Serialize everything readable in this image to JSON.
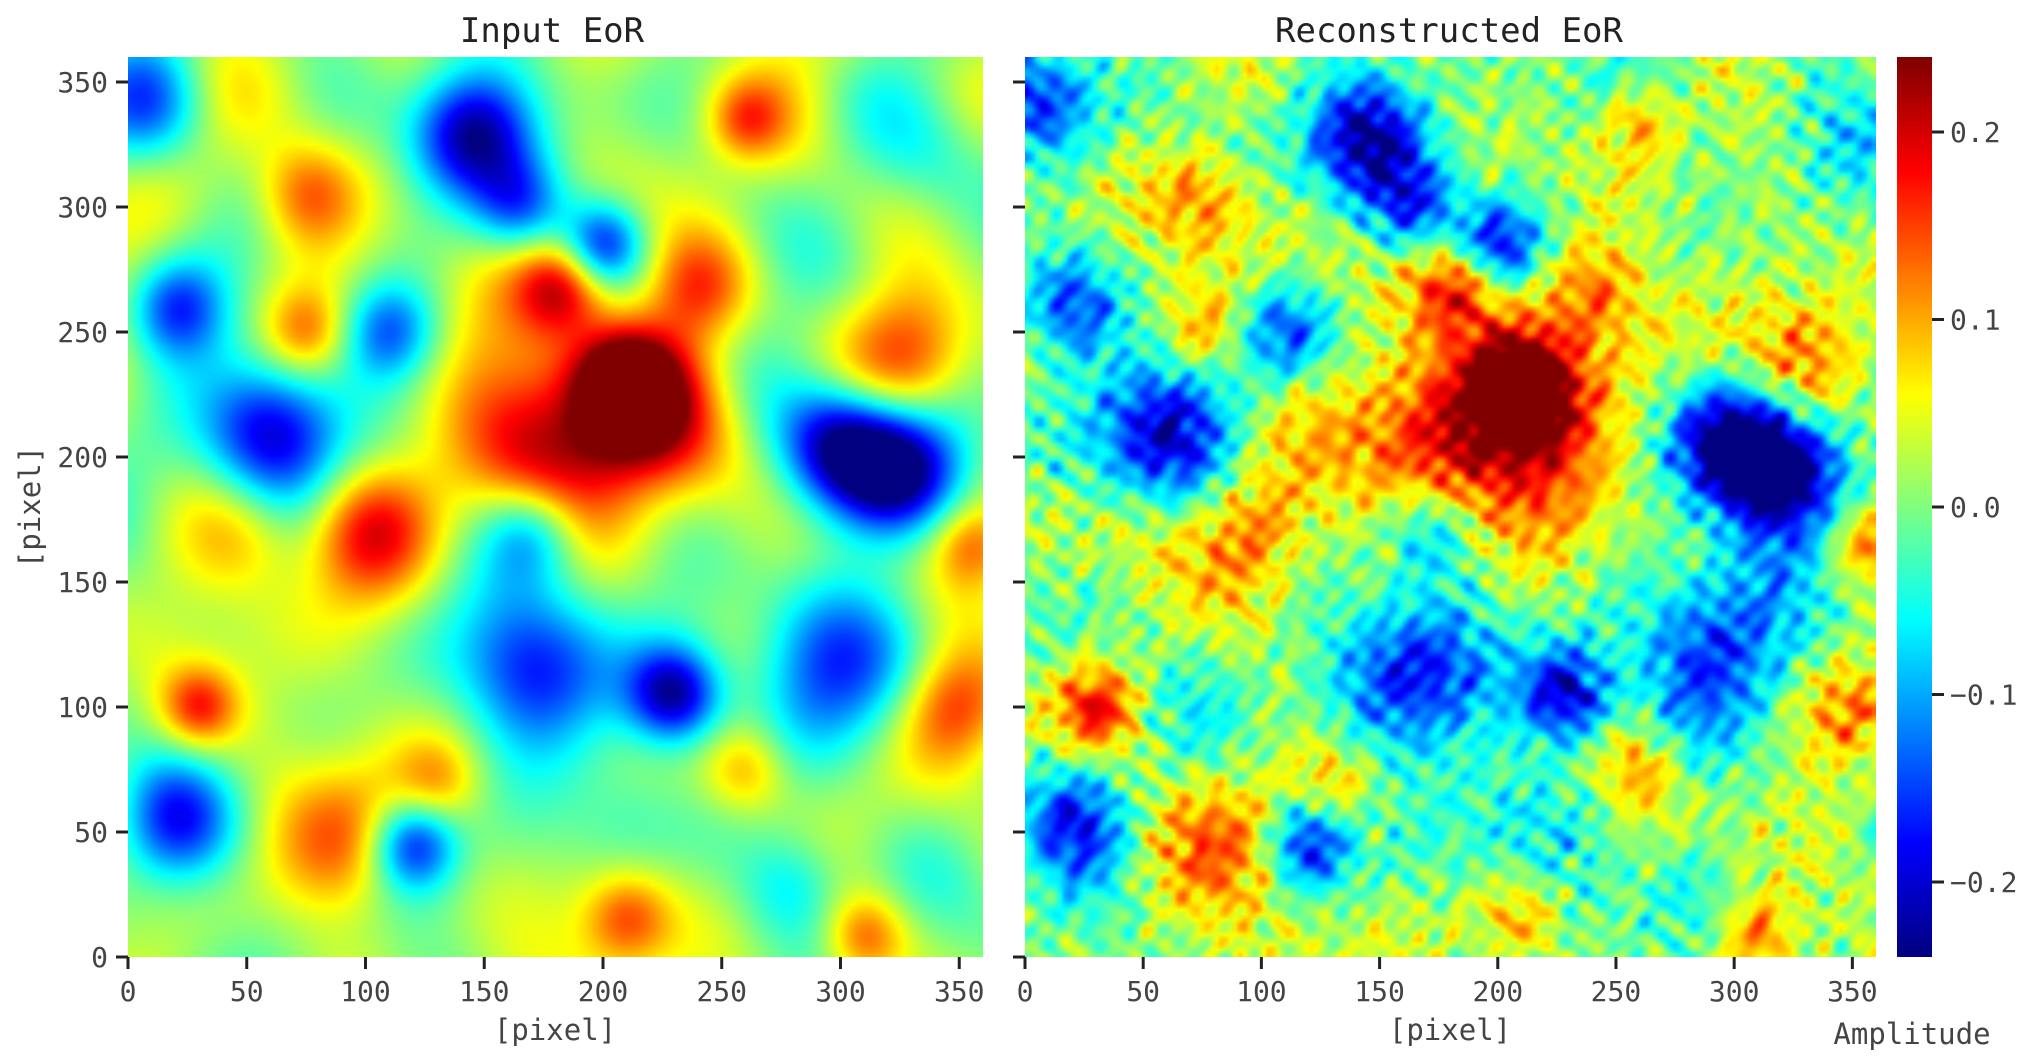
{
  "chart_data": [
    {
      "type": "heatmap",
      "title": "Input EoR",
      "xlabel": "[pixel]",
      "ylabel": "[pixel]",
      "xlim": [
        0,
        360
      ],
      "ylim": [
        0,
        360
      ],
      "xticks": [
        "0",
        "50",
        "100",
        "150",
        "200",
        "250",
        "300",
        "350"
      ],
      "yticks": [
        "0",
        "50",
        "100",
        "150",
        "200",
        "250",
        "300",
        "350"
      ],
      "xtick_values": [
        0,
        50,
        100,
        150,
        200,
        250,
        300,
        350
      ],
      "ytick_values": [
        0,
        50,
        100,
        150,
        200,
        250,
        300,
        350
      ],
      "colormap": "jet",
      "blobs": [
        {
          "x": 210,
          "y": 228,
          "r": 14,
          "v": 0.24
        },
        {
          "x": 200,
          "y": 222,
          "r": 32,
          "v": 0.1
        },
        {
          "x": 172,
          "y": 205,
          "r": 24,
          "v": 0.12
        },
        {
          "x": 182,
          "y": 268,
          "r": 13,
          "v": 0.15
        },
        {
          "x": 222,
          "y": 212,
          "r": 22,
          "v": 0.11
        },
        {
          "x": 240,
          "y": 268,
          "r": 15,
          "v": 0.11
        },
        {
          "x": 100,
          "y": 170,
          "r": 18,
          "v": 0.14
        },
        {
          "x": 75,
          "y": 305,
          "r": 15,
          "v": 0.12
        },
        {
          "x": 30,
          "y": 100,
          "r": 11,
          "v": 0.13
        },
        {
          "x": 90,
          "y": 45,
          "r": 20,
          "v": 0.12
        },
        {
          "x": 348,
          "y": 100,
          "r": 16,
          "v": 0.13
        },
        {
          "x": 330,
          "y": 240,
          "r": 20,
          "v": 0.13
        },
        {
          "x": 260,
          "y": 75,
          "r": 13,
          "v": 0.11
        },
        {
          "x": 210,
          "y": 15,
          "r": 13,
          "v": 0.12
        },
        {
          "x": 310,
          "y": 8,
          "r": 12,
          "v": 0.12
        },
        {
          "x": 260,
          "y": 335,
          "r": 11,
          "v": 0.1
        },
        {
          "x": 75,
          "y": 250,
          "r": 12,
          "v": 0.09
        },
        {
          "x": 355,
          "y": 165,
          "r": 12,
          "v": 0.1
        },
        {
          "x": 130,
          "y": 70,
          "r": 12,
          "v": 0.07
        },
        {
          "x": 50,
          "y": 170,
          "r": 16,
          "v": 0.06
        },
        {
          "x": 60,
          "y": 210,
          "r": 20,
          "v": -0.22
        },
        {
          "x": 145,
          "y": 330,
          "r": 18,
          "v": -0.24
        },
        {
          "x": 300,
          "y": 205,
          "r": 18,
          "v": -0.24
        },
        {
          "x": 325,
          "y": 195,
          "r": 18,
          "v": -0.24
        },
        {
          "x": 170,
          "y": 115,
          "r": 22,
          "v": -0.2
        },
        {
          "x": 230,
          "y": 105,
          "r": 14,
          "v": -0.24
        },
        {
          "x": 295,
          "y": 120,
          "r": 25,
          "v": -0.18
        },
        {
          "x": 120,
          "y": 45,
          "r": 13,
          "v": -0.2
        },
        {
          "x": 20,
          "y": 55,
          "r": 18,
          "v": -0.19
        },
        {
          "x": 200,
          "y": 285,
          "r": 12,
          "v": -0.18
        },
        {
          "x": 110,
          "y": 250,
          "r": 14,
          "v": -0.14
        },
        {
          "x": 20,
          "y": 260,
          "r": 14,
          "v": -0.15
        },
        {
          "x": 8,
          "y": 340,
          "r": 18,
          "v": -0.16
        },
        {
          "x": 165,
          "y": 300,
          "r": 14,
          "v": -0.15
        },
        {
          "x": 170,
          "y": 170,
          "r": 14,
          "v": -0.12
        },
        {
          "x": 280,
          "y": 30,
          "r": 16,
          "v": -0.1
        },
        {
          "x": 345,
          "y": 325,
          "r": 20,
          "v": -0.08
        },
        {
          "x": 210,
          "y": 55,
          "r": 18,
          "v": -0.07
        }
      ],
      "background": 0.02,
      "noise": 0.0
    },
    {
      "type": "heatmap",
      "title": "Reconstructed EoR",
      "xlabel": "[pixel]",
      "ylabel": "",
      "xlim": [
        0,
        360
      ],
      "ylim": [
        0,
        360
      ],
      "xticks": [
        "0",
        "50",
        "100",
        "150",
        "200",
        "250",
        "300",
        "350"
      ],
      "xtick_values": [
        0,
        50,
        100,
        150,
        200,
        250,
        300,
        350
      ],
      "ytick_values": [
        0,
        50,
        100,
        150,
        200,
        250,
        300,
        350
      ],
      "colormap": "jet",
      "blobs": [
        {
          "x": 210,
          "y": 228,
          "r": 14,
          "v": 0.24
        },
        {
          "x": 200,
          "y": 222,
          "r": 32,
          "v": 0.1
        },
        {
          "x": 172,
          "y": 205,
          "r": 24,
          "v": 0.12
        },
        {
          "x": 182,
          "y": 268,
          "r": 13,
          "v": 0.15
        },
        {
          "x": 222,
          "y": 212,
          "r": 22,
          "v": 0.11
        },
        {
          "x": 240,
          "y": 268,
          "r": 15,
          "v": 0.11
        },
        {
          "x": 100,
          "y": 170,
          "r": 18,
          "v": 0.14
        },
        {
          "x": 75,
          "y": 305,
          "r": 15,
          "v": 0.12
        },
        {
          "x": 30,
          "y": 100,
          "r": 11,
          "v": 0.13
        },
        {
          "x": 90,
          "y": 45,
          "r": 20,
          "v": 0.12
        },
        {
          "x": 348,
          "y": 100,
          "r": 16,
          "v": 0.13
        },
        {
          "x": 330,
          "y": 240,
          "r": 20,
          "v": 0.13
        },
        {
          "x": 260,
          "y": 75,
          "r": 13,
          "v": 0.11
        },
        {
          "x": 210,
          "y": 15,
          "r": 13,
          "v": 0.12
        },
        {
          "x": 310,
          "y": 8,
          "r": 12,
          "v": 0.12
        },
        {
          "x": 260,
          "y": 335,
          "r": 11,
          "v": 0.1
        },
        {
          "x": 75,
          "y": 250,
          "r": 12,
          "v": 0.09
        },
        {
          "x": 355,
          "y": 165,
          "r": 12,
          "v": 0.1
        },
        {
          "x": 130,
          "y": 70,
          "r": 12,
          "v": 0.07
        },
        {
          "x": 50,
          "y": 170,
          "r": 16,
          "v": 0.06
        },
        {
          "x": 60,
          "y": 210,
          "r": 20,
          "v": -0.22
        },
        {
          "x": 145,
          "y": 330,
          "r": 18,
          "v": -0.24
        },
        {
          "x": 300,
          "y": 205,
          "r": 18,
          "v": -0.24
        },
        {
          "x": 325,
          "y": 195,
          "r": 18,
          "v": -0.24
        },
        {
          "x": 170,
          "y": 115,
          "r": 22,
          "v": -0.2
        },
        {
          "x": 230,
          "y": 105,
          "r": 14,
          "v": -0.24
        },
        {
          "x": 295,
          "y": 120,
          "r": 25,
          "v": -0.18
        },
        {
          "x": 120,
          "y": 45,
          "r": 13,
          "v": -0.2
        },
        {
          "x": 20,
          "y": 55,
          "r": 18,
          "v": -0.19
        },
        {
          "x": 200,
          "y": 285,
          "r": 12,
          "v": -0.18
        },
        {
          "x": 110,
          "y": 250,
          "r": 14,
          "v": -0.14
        },
        {
          "x": 20,
          "y": 260,
          "r": 14,
          "v": -0.15
        },
        {
          "x": 8,
          "y": 340,
          "r": 18,
          "v": -0.16
        },
        {
          "x": 165,
          "y": 300,
          "r": 14,
          "v": -0.15
        },
        {
          "x": 170,
          "y": 170,
          "r": 14,
          "v": -0.12
        },
        {
          "x": 280,
          "y": 30,
          "r": 16,
          "v": -0.1
        },
        {
          "x": 345,
          "y": 325,
          "r": 20,
          "v": -0.08
        },
        {
          "x": 210,
          "y": 55,
          "r": 18,
          "v": -0.07
        }
      ],
      "background": 0.01,
      "noise": 0.035
    }
  ],
  "colorbar": {
    "label": "Amplitude",
    "vmin": -0.24,
    "vmax": 0.24,
    "ticks": [
      "−0.2",
      "−0.1",
      "0.0",
      "0.1",
      "0.2"
    ],
    "tick_values": [
      -0.2,
      -0.1,
      0.0,
      0.1,
      0.2
    ],
    "colormap": "jet"
  }
}
